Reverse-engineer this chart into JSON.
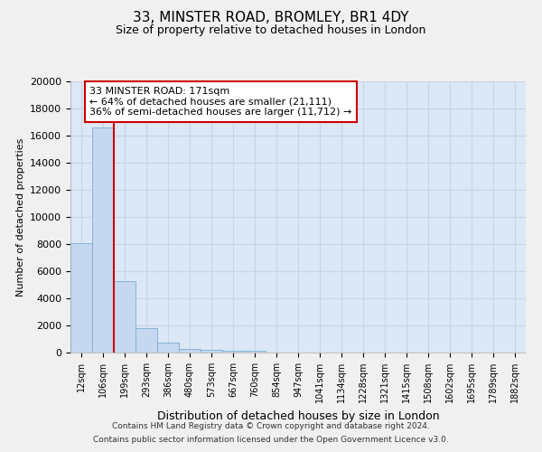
{
  "title": "33, MINSTER ROAD, BROMLEY, BR1 4DY",
  "subtitle": "Size of property relative to detached houses in London",
  "xlabel": "Distribution of detached houses by size in London",
  "ylabel": "Number of detached properties",
  "bin_labels": [
    "12sqm",
    "106sqm",
    "199sqm",
    "293sqm",
    "386sqm",
    "480sqm",
    "573sqm",
    "667sqm",
    "760sqm",
    "854sqm",
    "947sqm",
    "1041sqm",
    "1134sqm",
    "1228sqm",
    "1321sqm",
    "1415sqm",
    "1508sqm",
    "1602sqm",
    "1695sqm",
    "1789sqm",
    "1882sqm"
  ],
  "bar_heights": [
    8100,
    16600,
    5300,
    1800,
    750,
    300,
    200,
    150,
    130,
    0,
    0,
    0,
    0,
    0,
    0,
    0,
    0,
    0,
    0,
    0,
    0
  ],
  "bar_color": "#c5d8ef",
  "bar_edge_color": "#7badd4",
  "annotation_box_text": "33 MINSTER ROAD: 171sqm\n← 64% of detached houses are smaller (21,111)\n36% of semi-detached houses are larger (11,712) →",
  "annotation_box_color": "#cc0000",
  "annotation_box_fill": "#ffffff",
  "property_line_x": 1.5,
  "ylim": [
    0,
    20000
  ],
  "yticks": [
    0,
    2000,
    4000,
    6000,
    8000,
    10000,
    12000,
    14000,
    16000,
    18000,
    20000
  ],
  "grid_color": "#c8d4e8",
  "bg_color": "#dce8f5",
  "fig_color": "#f0f0f0",
  "footer_line1": "Contains HM Land Registry data © Crown copyright and database right 2024.",
  "footer_line2": "Contains public sector information licensed under the Open Government Licence v3.0."
}
